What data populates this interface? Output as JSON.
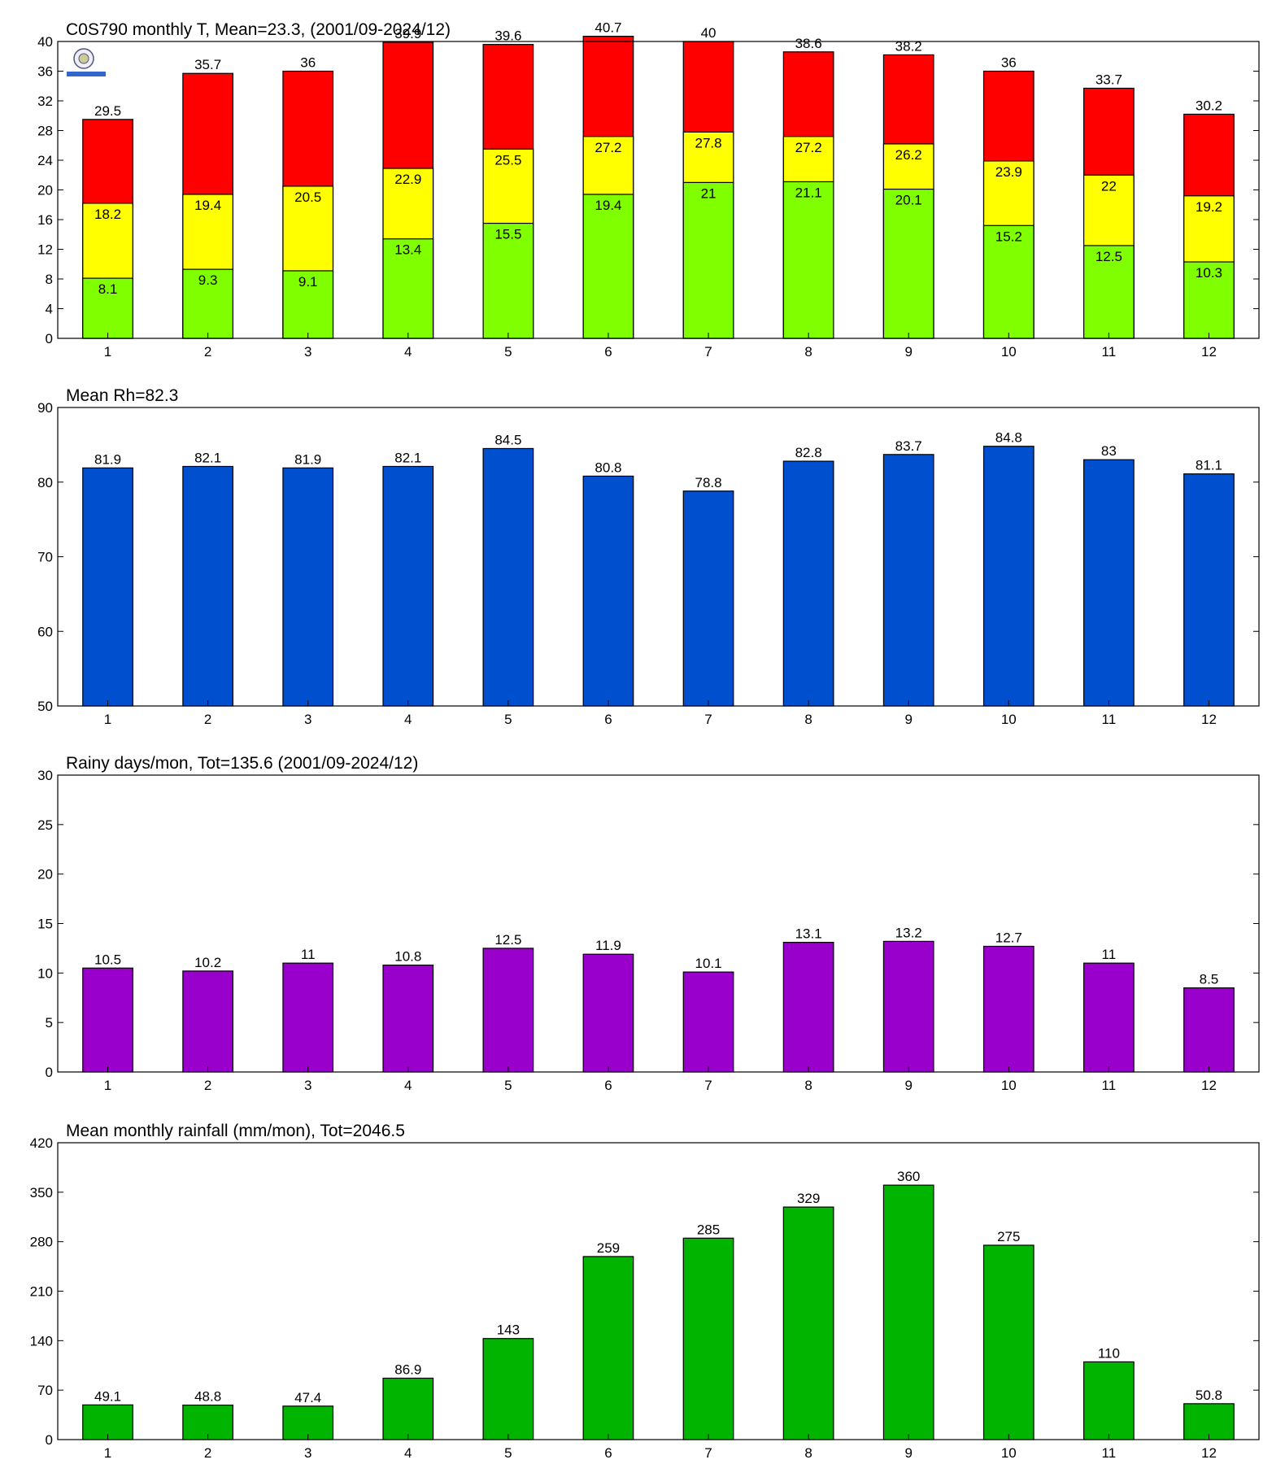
{
  "chart_data": [
    {
      "type": "bar",
      "title": "C0S790 monthly T, Mean=23.3, (2001/09-2024/12)",
      "categories": [
        1,
        2,
        3,
        4,
        5,
        6,
        7,
        8,
        9,
        10,
        11,
        12
      ],
      "series": [
        {
          "color": "#ff0000",
          "values": [
            29.5,
            35.7,
            36,
            39.9,
            39.6,
            40.7,
            40,
            38.6,
            38.2,
            36,
            33.7,
            30.2
          ]
        },
        {
          "color": "#ffff00",
          "values": [
            18.2,
            19.4,
            20.5,
            22.9,
            25.5,
            27.2,
            27.8,
            27.2,
            26.2,
            23.9,
            22,
            19.2
          ]
        },
        {
          "color": "#80ff00",
          "values": [
            8.1,
            9.3,
            9.1,
            13.4,
            15.5,
            19.4,
            21,
            21.1,
            20.1,
            15.2,
            12.5,
            10.3
          ]
        }
      ],
      "ylim": [
        0,
        40
      ],
      "yticks": [
        0,
        4,
        8,
        12,
        16,
        20,
        24,
        28,
        32,
        36,
        40
      ]
    },
    {
      "type": "bar",
      "title": "Mean Rh=82.3",
      "categories": [
        1,
        2,
        3,
        4,
        5,
        6,
        7,
        8,
        9,
        10,
        11,
        12
      ],
      "series": [
        {
          "color": "#004fcf",
          "values": [
            81.9,
            82.1,
            81.9,
            82.1,
            84.5,
            80.8,
            78.8,
            82.8,
            83.7,
            84.8,
            83,
            81.1
          ]
        }
      ],
      "ylim": [
        50,
        90
      ],
      "yticks": [
        50,
        60,
        70,
        80,
        90
      ]
    },
    {
      "type": "bar",
      "title": "Rainy days/mon, Tot=135.6 (2001/09-2024/12)",
      "categories": [
        1,
        2,
        3,
        4,
        5,
        6,
        7,
        8,
        9,
        10,
        11,
        12
      ],
      "series": [
        {
          "color": "#9900cc",
          "values": [
            10.5,
            10.2,
            11,
            10.8,
            12.5,
            11.9,
            10.1,
            13.1,
            13.2,
            12.7,
            11,
            8.5
          ]
        }
      ],
      "ylim": [
        0,
        30
      ],
      "yticks": [
        0,
        5,
        10,
        15,
        20,
        25,
        30
      ]
    },
    {
      "type": "bar",
      "title": "Mean monthly rainfall (mm/mon), Tot=2046.5",
      "categories": [
        1,
        2,
        3,
        4,
        5,
        6,
        7,
        8,
        9,
        10,
        11,
        12
      ],
      "series": [
        {
          "color": "#00b400",
          "values": [
            49.1,
            48.8,
            47.4,
            86.9,
            143,
            259,
            285,
            329,
            360,
            275,
            110,
            50.8
          ]
        }
      ],
      "ylim": [
        0,
        420
      ],
      "yticks": [
        0,
        70,
        140,
        210,
        280,
        350,
        420
      ]
    }
  ]
}
